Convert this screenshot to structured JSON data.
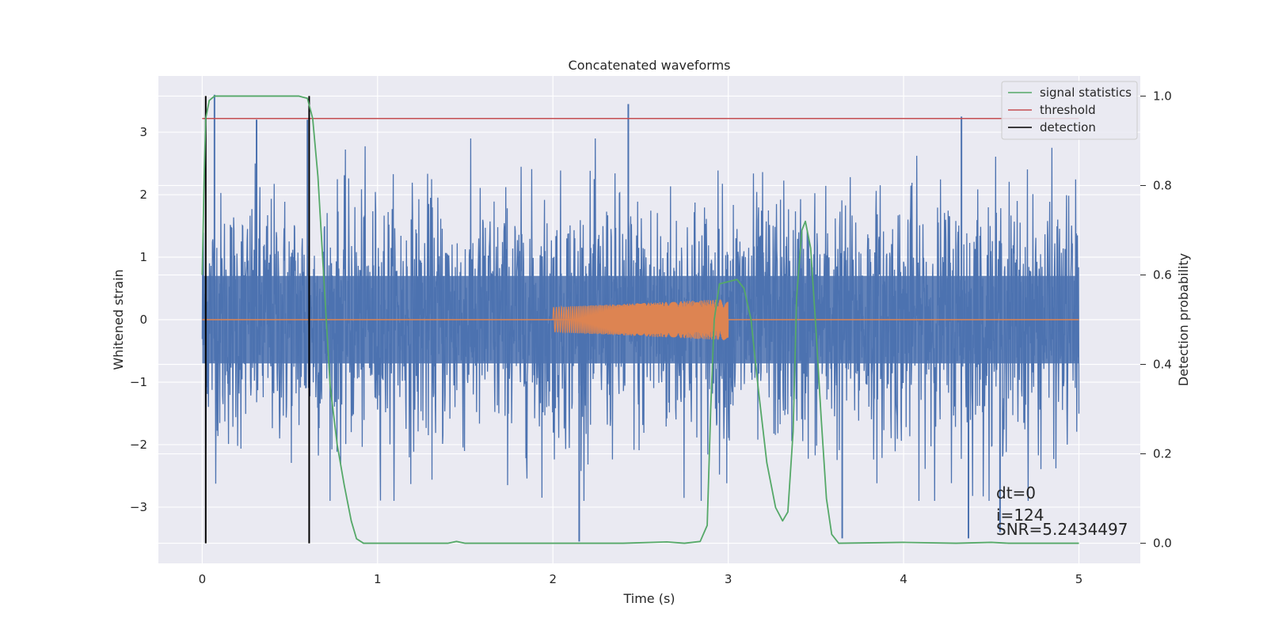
{
  "chart_data": {
    "type": "line",
    "title": "Concatenated waveforms",
    "xlabel": "Time (s)",
    "ylabel": "Whitened strain",
    "y2label": "Detection probability",
    "xlim": [
      -0.25,
      5.35
    ],
    "ylim": [
      -3.9,
      3.9
    ],
    "y2lim": [
      -0.045,
      1.045
    ],
    "xticks": [
      0,
      1,
      2,
      3,
      4,
      5
    ],
    "xtick_labels": [
      "0",
      "1",
      "2",
      "3",
      "4",
      "5"
    ],
    "yticks": [
      -3,
      -2,
      -1,
      0,
      1,
      2,
      3
    ],
    "ytick_labels": [
      "−3",
      "−2",
      "−1",
      "0",
      "1",
      "2",
      "3"
    ],
    "y2ticks": [
      0.0,
      0.2,
      0.4,
      0.6,
      0.8,
      1.0
    ],
    "y2tick_labels": [
      "0.0",
      "0.2",
      "0.4",
      "0.6",
      "0.8",
      "1.0"
    ],
    "grid": true,
    "legend_position": "top-right",
    "series": [
      {
        "name": "",
        "kind": "noise",
        "axis": "left",
        "color": "#4c72b0",
        "x_range": [
          0,
          5
        ],
        "typical_amplitude": 1.0,
        "peaks": [
          {
            "x": 0.07,
            "y": 3.6
          },
          {
            "x": 0.31,
            "y": 3.2
          },
          {
            "x": 0.6,
            "y": 3.2
          },
          {
            "x": 2.15,
            "y": -3.55
          },
          {
            "x": 2.43,
            "y": 3.45
          },
          {
            "x": 3.65,
            "y": -3.5
          },
          {
            "x": 4.33,
            "y": 3.25
          },
          {
            "x": 4.37,
            "y": -3.5
          },
          {
            "x": 4.55,
            "y": -3.4
          }
        ]
      },
      {
        "name": "",
        "kind": "chirp",
        "axis": "left",
        "color": "#dd8452",
        "flat": [
          {
            "x": 0,
            "y": 0
          },
          {
            "x": 5,
            "y": 0
          }
        ],
        "chirp_x_range": [
          2.0,
          3.0
        ],
        "chirp_amplitude_start": 0.2,
        "chirp_amplitude_end": 0.33
      },
      {
        "name": "signal statistics",
        "axis": "right",
        "color": "#55a868",
        "points": [
          [
            0.0,
            0.6
          ],
          [
            0.01,
            0.8
          ],
          [
            0.02,
            0.95
          ],
          [
            0.04,
            0.99
          ],
          [
            0.07,
            1.0
          ],
          [
            0.15,
            1.0
          ],
          [
            0.3,
            1.0
          ],
          [
            0.45,
            1.0
          ],
          [
            0.55,
            1.0
          ],
          [
            0.6,
            0.995
          ],
          [
            0.63,
            0.95
          ],
          [
            0.66,
            0.82
          ],
          [
            0.7,
            0.55
          ],
          [
            0.73,
            0.35
          ],
          [
            0.77,
            0.22
          ],
          [
            0.81,
            0.13
          ],
          [
            0.85,
            0.05
          ],
          [
            0.88,
            0.01
          ],
          [
            0.92,
            0.0
          ],
          [
            1.2,
            0.0
          ],
          [
            1.4,
            0.0
          ],
          [
            1.45,
            0.004
          ],
          [
            1.5,
            0.0
          ],
          [
            2.0,
            0.0
          ],
          [
            2.4,
            0.0
          ],
          [
            2.65,
            0.003
          ],
          [
            2.75,
            0.0
          ],
          [
            2.84,
            0.004
          ],
          [
            2.88,
            0.04
          ],
          [
            2.9,
            0.3
          ],
          [
            2.92,
            0.5
          ],
          [
            2.95,
            0.58
          ],
          [
            3.0,
            0.585
          ],
          [
            3.05,
            0.59
          ],
          [
            3.09,
            0.57
          ],
          [
            3.13,
            0.5
          ],
          [
            3.17,
            0.35
          ],
          [
            3.22,
            0.18
          ],
          [
            3.27,
            0.08
          ],
          [
            3.31,
            0.05
          ],
          [
            3.34,
            0.07
          ],
          [
            3.37,
            0.25
          ],
          [
            3.39,
            0.55
          ],
          [
            3.42,
            0.7
          ],
          [
            3.44,
            0.72
          ],
          [
            3.47,
            0.66
          ],
          [
            3.5,
            0.48
          ],
          [
            3.53,
            0.28
          ],
          [
            3.56,
            0.1
          ],
          [
            3.59,
            0.02
          ],
          [
            3.63,
            0.0
          ],
          [
            4.0,
            0.002
          ],
          [
            4.3,
            0.0
          ],
          [
            4.5,
            0.002
          ],
          [
            4.6,
            0.0
          ],
          [
            5.0,
            0.0
          ]
        ]
      },
      {
        "name": "threshold",
        "axis": "right",
        "color": "#c44e52",
        "y": 0.95,
        "x_range": [
          0,
          5
        ]
      },
      {
        "name": "detection",
        "axis": "right",
        "color": "#000000",
        "x": [
          0.02,
          0.61
        ],
        "y_range": [
          0,
          1
        ]
      }
    ],
    "annotations": [
      "dt=0",
      "i=124",
      "SNR=5.2434497"
    ]
  }
}
